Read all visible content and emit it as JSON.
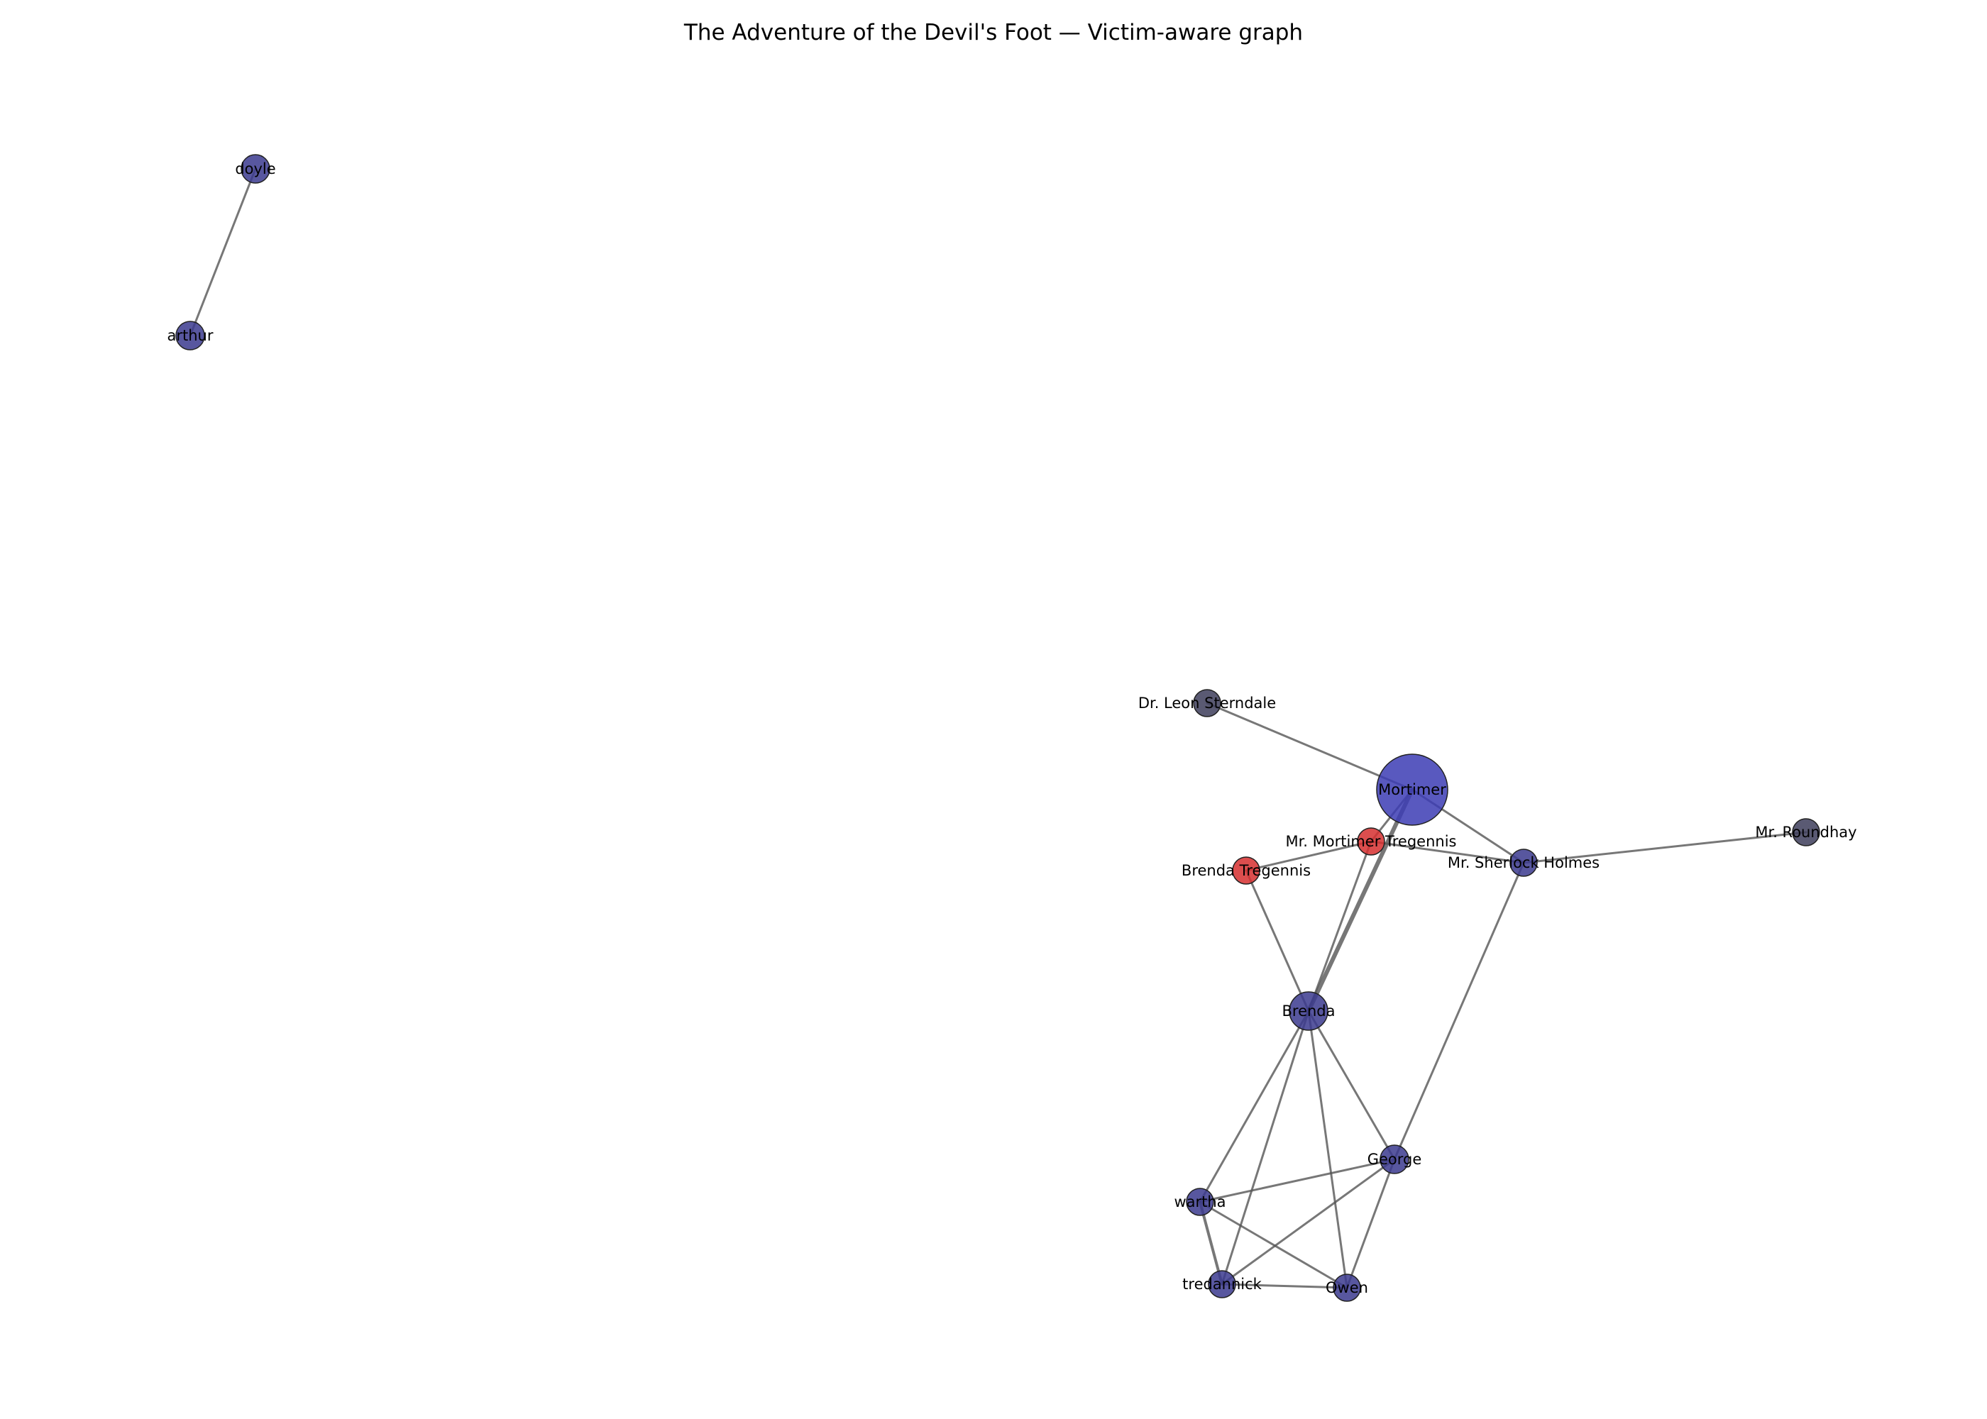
{
  "title": "The Adventure of the Devil's Foot — Victim-aware graph",
  "colors": {
    "default_node": "#3b3a8e",
    "victim_node": "#d62f2f",
    "main_node": "#3c3cb4",
    "minor_node": "#3d3d5a",
    "edge": "#555555"
  },
  "nodes": [
    {
      "id": "doyle",
      "label": "doyle",
      "role": "default"
    },
    {
      "id": "arthur",
      "label": "arthur",
      "role": "default"
    },
    {
      "id": "sterndale",
      "label": "Dr. Leon Sterndale",
      "role": "minor"
    },
    {
      "id": "mortimer",
      "label": "Mortimer",
      "role": "main"
    },
    {
      "id": "roundhay",
      "label": "Mr. Roundhay",
      "role": "minor"
    },
    {
      "id": "mr_mortimer",
      "label": "Mr. Mortimer Tregennis",
      "role": "victim"
    },
    {
      "id": "brenda_t",
      "label": "Brenda Tregennis",
      "role": "victim"
    },
    {
      "id": "holmes",
      "label": "Mr. Sherlock Holmes",
      "role": "default"
    },
    {
      "id": "brenda",
      "label": "Brenda",
      "role": "default"
    },
    {
      "id": "george",
      "label": "George",
      "role": "default"
    },
    {
      "id": "wartha",
      "label": "wartha",
      "role": "default"
    },
    {
      "id": "tredannick",
      "label": "tredannick",
      "role": "default"
    },
    {
      "id": "owen",
      "label": "Owen",
      "role": "default"
    }
  ],
  "edges": [
    {
      "source": "doyle",
      "target": "arthur"
    },
    {
      "source": "sterndale",
      "target": "mortimer"
    },
    {
      "source": "mortimer",
      "target": "mr_mortimer"
    },
    {
      "source": "mortimer",
      "target": "holmes"
    },
    {
      "source": "mortimer",
      "target": "brenda"
    },
    {
      "source": "mr_mortimer",
      "target": "brenda_t"
    },
    {
      "source": "mr_mortimer",
      "target": "holmes"
    },
    {
      "source": "mr_mortimer",
      "target": "brenda"
    },
    {
      "source": "holmes",
      "target": "roundhay"
    },
    {
      "source": "holmes",
      "target": "george"
    },
    {
      "source": "brenda_t",
      "target": "brenda"
    },
    {
      "source": "brenda",
      "target": "wartha"
    },
    {
      "source": "brenda",
      "target": "tredannick"
    },
    {
      "source": "brenda",
      "target": "owen"
    },
    {
      "source": "brenda",
      "target": "george"
    },
    {
      "source": "george",
      "target": "wartha"
    },
    {
      "source": "george",
      "target": "tredannick"
    },
    {
      "source": "george",
      "target": "owen"
    },
    {
      "source": "wartha",
      "target": "tredannick"
    },
    {
      "source": "wartha",
      "target": "owen"
    },
    {
      "source": "tredannick",
      "target": "owen"
    }
  ]
}
